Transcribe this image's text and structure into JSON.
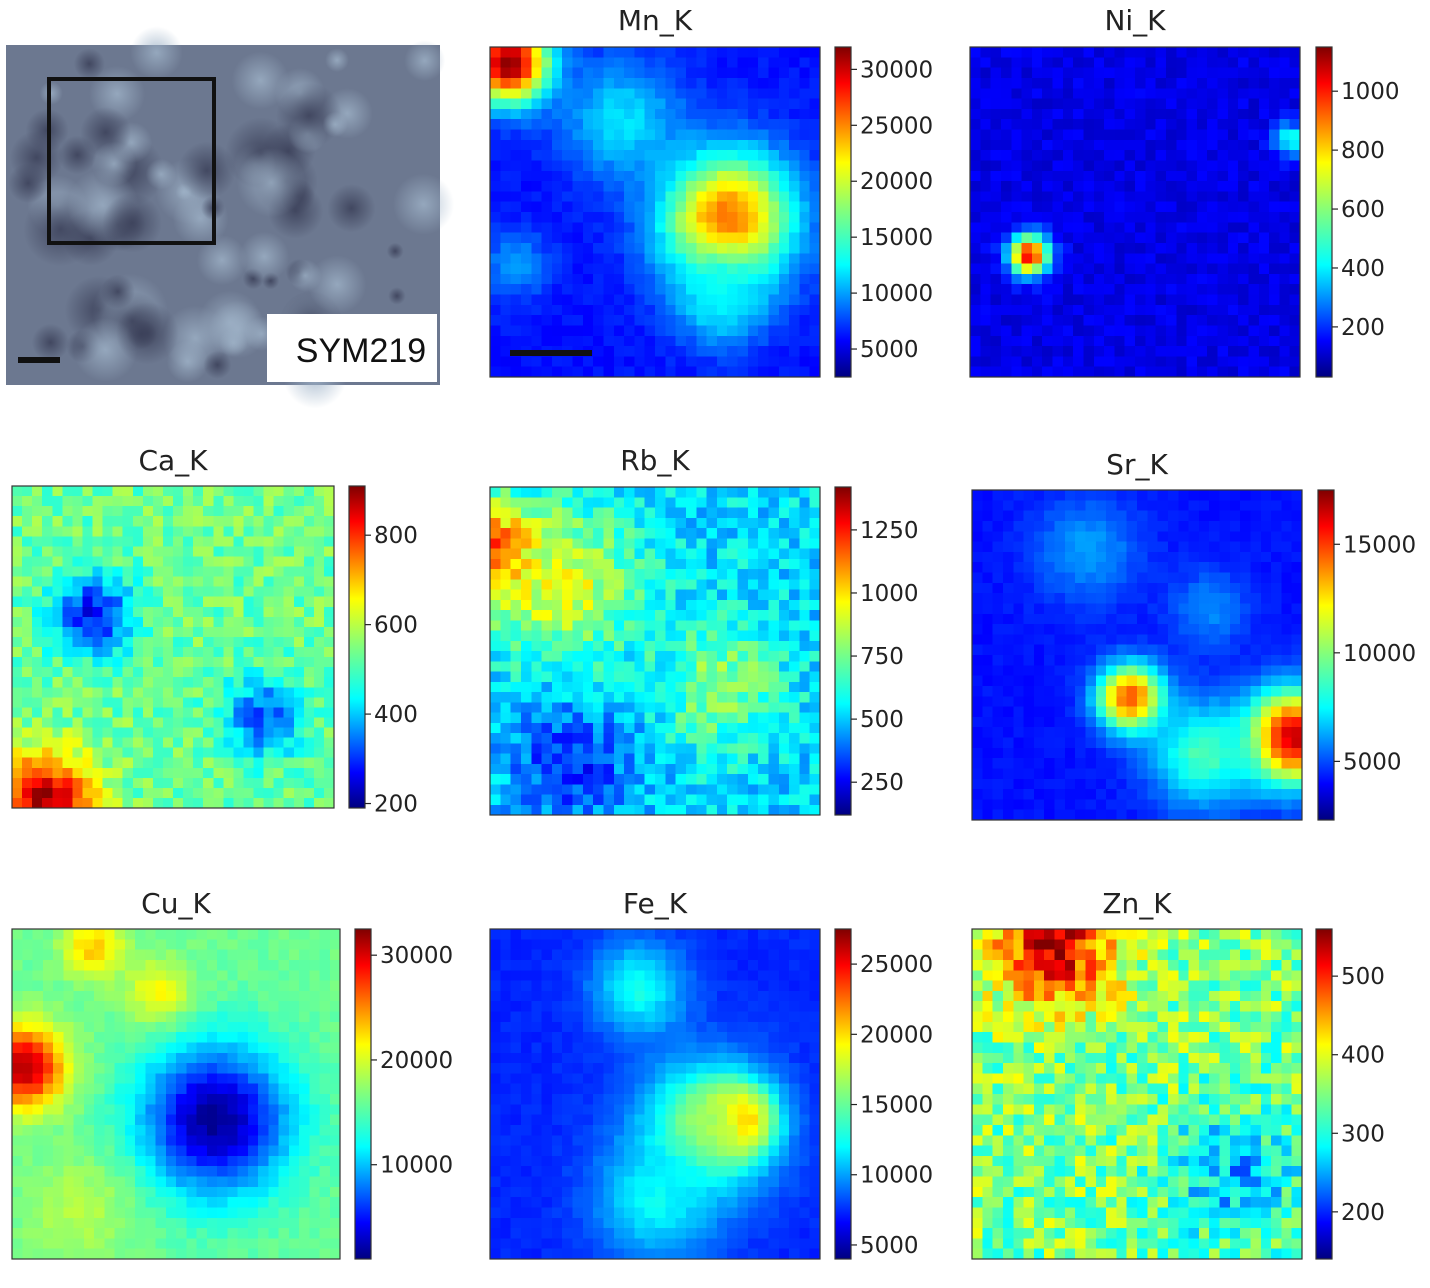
{
  "photo": {
    "sample_label": "SYM219"
  },
  "chart_data": [
    {
      "type": "heatmap",
      "title": "Mn_K",
      "colormap": "jet",
      "colorbar_ticks": [
        "5000",
        "10000",
        "15000",
        "20000",
        "25000",
        "30000"
      ],
      "colorbar_range": [
        2500,
        32000
      ],
      "scale_bar": true,
      "hotspots": [
        {
          "x": 0.06,
          "y": 0.05,
          "r": 0.12,
          "v": 1.0
        },
        {
          "x": 0.72,
          "y": 0.52,
          "r": 0.2,
          "v": 0.78
        },
        {
          "x": 0.4,
          "y": 0.22,
          "r": 0.18,
          "v": 0.35
        },
        {
          "x": 0.7,
          "y": 0.76,
          "r": 0.14,
          "v": 0.38
        },
        {
          "x": 0.08,
          "y": 0.66,
          "r": 0.1,
          "v": 0.28
        }
      ],
      "base": 0.14,
      "noise": 0.02
    },
    {
      "type": "heatmap",
      "title": "Ni_K",
      "colormap": "jet",
      "colorbar_ticks": [
        "200",
        "400",
        "600",
        "800",
        "1000"
      ],
      "colorbar_range": [
        30,
        1150
      ],
      "scale_bar": false,
      "hotspots": [
        {
          "x": 0.18,
          "y": 0.63,
          "r": 0.06,
          "v": 0.9
        },
        {
          "x": 0.97,
          "y": 0.28,
          "r": 0.05,
          "v": 0.4
        }
      ],
      "base": 0.1,
      "noise": 0.03
    },
    {
      "type": "heatmap",
      "title": "Ca_K",
      "colormap": "jet",
      "colorbar_ticks": [
        "200",
        "400",
        "600",
        "800"
      ],
      "colorbar_range": [
        190,
        910
      ],
      "scale_bar": false,
      "hotspots": [
        {
          "x": 0.1,
          "y": 0.98,
          "r": 0.15,
          "v": 0.95
        },
        {
          "x": 0.25,
          "y": 0.4,
          "r": 0.12,
          "v": 0.12
        },
        {
          "x": 0.78,
          "y": 0.72,
          "r": 0.12,
          "v": 0.2
        }
      ],
      "base": 0.48,
      "noise": 0.07
    },
    {
      "type": "heatmap",
      "title": "Rb_K",
      "colormap": "jet",
      "colorbar_ticks": [
        "250",
        "500",
        "750",
        "1000",
        "1250"
      ],
      "colorbar_range": [
        120,
        1420
      ],
      "scale_bar": false,
      "hotspots": [
        {
          "x": 0.02,
          "y": 0.2,
          "r": 0.14,
          "v": 0.88
        },
        {
          "x": 0.22,
          "y": 0.3,
          "r": 0.22,
          "v": 0.6
        },
        {
          "x": 0.7,
          "y": 0.6,
          "r": 0.18,
          "v": 0.52
        },
        {
          "x": 0.25,
          "y": 0.85,
          "r": 0.18,
          "v": 0.16
        }
      ],
      "base": 0.34,
      "noise": 0.08
    },
    {
      "type": "heatmap",
      "title": "Sr_K",
      "colormap": "jet",
      "colorbar_ticks": [
        "5000",
        "10000",
        "15000"
      ],
      "colorbar_range": [
        2300,
        17500
      ],
      "scale_bar": false,
      "hotspots": [
        {
          "x": 0.48,
          "y": 0.63,
          "r": 0.1,
          "v": 0.82
        },
        {
          "x": 0.97,
          "y": 0.75,
          "r": 0.14,
          "v": 0.95
        },
        {
          "x": 0.7,
          "y": 0.8,
          "r": 0.16,
          "v": 0.45
        },
        {
          "x": 0.35,
          "y": 0.18,
          "r": 0.16,
          "v": 0.28
        },
        {
          "x": 0.72,
          "y": 0.36,
          "r": 0.12,
          "v": 0.26
        }
      ],
      "base": 0.14,
      "noise": 0.015
    },
    {
      "type": "heatmap",
      "title": "Cu_K",
      "colormap": "jet",
      "colorbar_ticks": [
        "10000",
        "20000",
        "30000"
      ],
      "colorbar_range": [
        1000,
        32500
      ],
      "scale_bar": false,
      "hotspots": [
        {
          "x": 0.04,
          "y": 0.42,
          "r": 0.12,
          "v": 0.95
        },
        {
          "x": 0.25,
          "y": 0.06,
          "r": 0.09,
          "v": 0.68
        },
        {
          "x": 0.45,
          "y": 0.2,
          "r": 0.1,
          "v": 0.64
        },
        {
          "x": 0.62,
          "y": 0.58,
          "r": 0.22,
          "v": 0.02
        },
        {
          "x": 0.2,
          "y": 0.85,
          "r": 0.16,
          "v": 0.55
        }
      ],
      "base": 0.48,
      "noise": 0.02
    },
    {
      "type": "heatmap",
      "title": "Fe_K",
      "colormap": "jet",
      "colorbar_ticks": [
        "5000",
        "10000",
        "15000",
        "20000",
        "25000"
      ],
      "colorbar_range": [
        4000,
        27500
      ],
      "scale_bar": false,
      "hotspots": [
        {
          "x": 0.75,
          "y": 0.58,
          "r": 0.1,
          "v": 0.98
        },
        {
          "x": 0.66,
          "y": 0.6,
          "r": 0.2,
          "v": 0.55
        },
        {
          "x": 0.45,
          "y": 0.18,
          "r": 0.14,
          "v": 0.4
        },
        {
          "x": 0.5,
          "y": 0.82,
          "r": 0.18,
          "v": 0.38
        }
      ],
      "base": 0.16,
      "noise": 0.015
    },
    {
      "type": "heatmap",
      "title": "Zn_K",
      "colormap": "jet",
      "colorbar_ticks": [
        "200",
        "300",
        "400",
        "500"
      ],
      "colorbar_range": [
        140,
        560
      ],
      "scale_bar": false,
      "hotspots": [
        {
          "x": 0.25,
          "y": 0.05,
          "r": 0.18,
          "v": 0.92
        },
        {
          "x": 0.8,
          "y": 0.75,
          "r": 0.2,
          "v": 0.3
        }
      ],
      "base": 0.5,
      "noise": 0.12
    }
  ]
}
